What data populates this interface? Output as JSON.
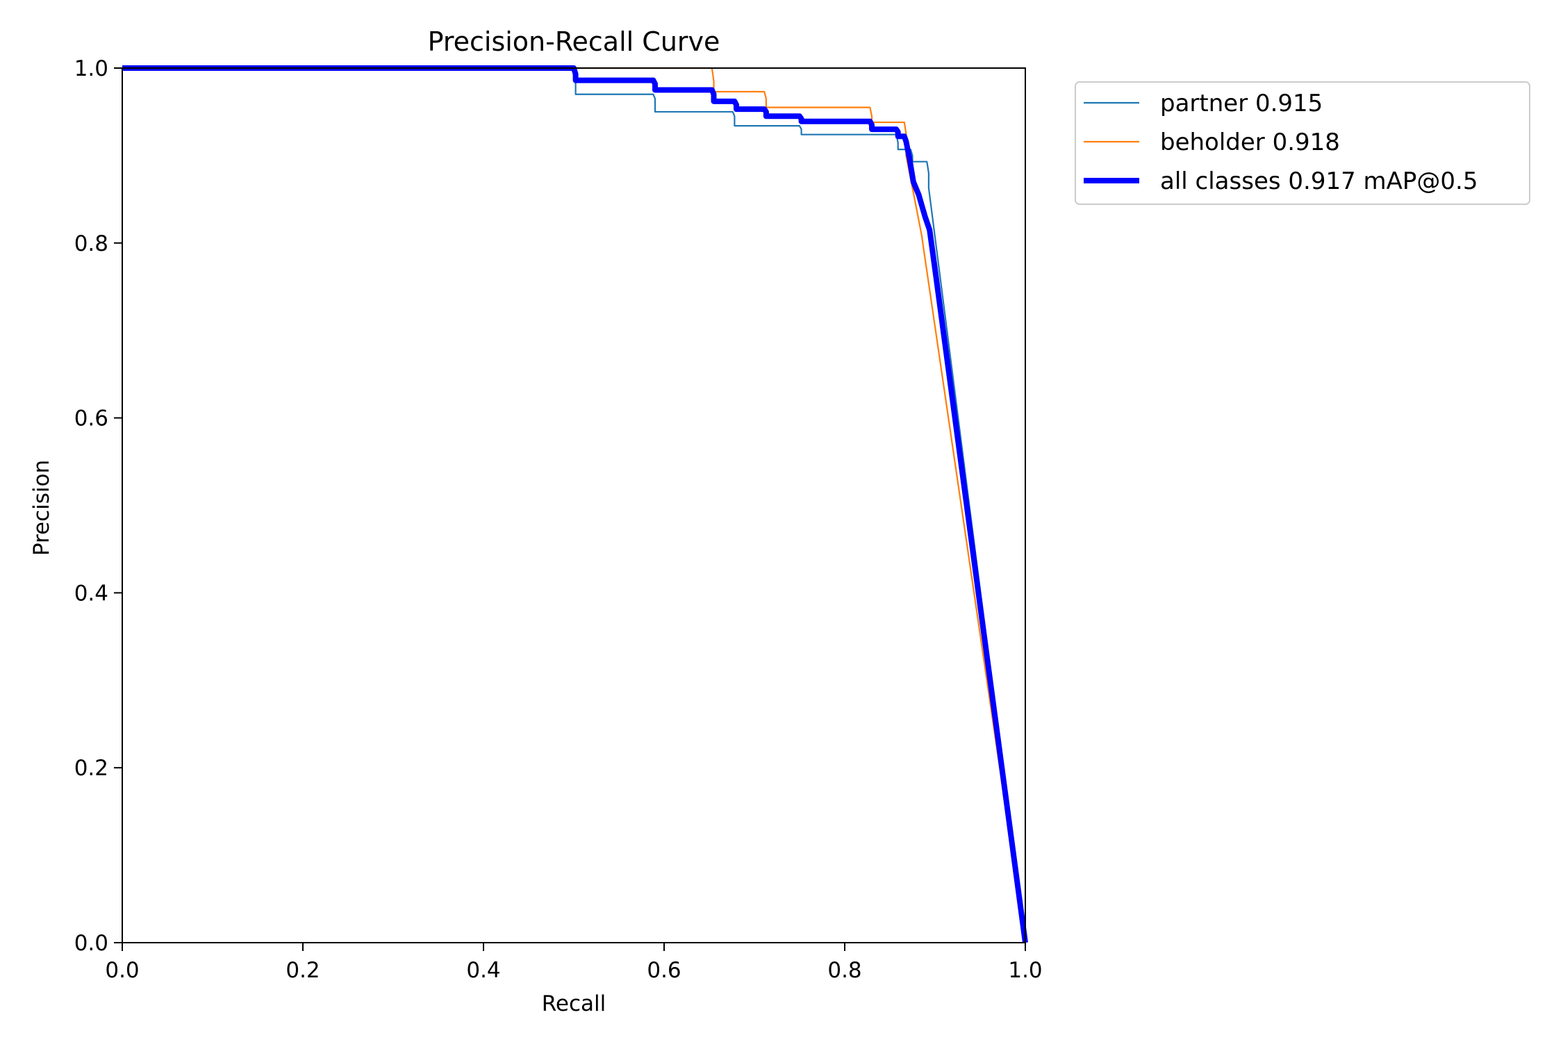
{
  "chart_data": {
    "type": "line",
    "title": "Precision-Recall Curve",
    "xlabel": "Recall",
    "ylabel": "Precision",
    "xlim": [
      0,
      1
    ],
    "ylim": [
      0,
      1
    ],
    "grid": false,
    "legend_placement": "outside-top-right",
    "xticks": [
      "0.0",
      "0.2",
      "0.4",
      "0.6",
      "0.8",
      "1.0"
    ],
    "yticks": [
      "0.0",
      "0.2",
      "0.4",
      "0.6",
      "0.8",
      "1.0"
    ],
    "series": [
      {
        "name": "partner 0.915",
        "color": "#1f77b4",
        "style": "thin",
        "x": [
          0.0,
          0.5,
          0.502,
          0.502,
          0.588,
          0.59,
          0.59,
          0.676,
          0.678,
          0.678,
          0.75,
          0.752,
          0.752,
          0.857,
          0.859,
          0.859,
          0.873,
          0.875,
          0.875,
          0.891,
          0.893,
          0.893,
          1.0
        ],
        "y": [
          1.0,
          1.0,
          0.985,
          0.97,
          0.97,
          0.965,
          0.95,
          0.95,
          0.945,
          0.934,
          0.934,
          0.93,
          0.924,
          0.924,
          0.915,
          0.907,
          0.907,
          0.9,
          0.893,
          0.893,
          0.88,
          0.863,
          0.0
        ]
      },
      {
        "name": "beholder 0.918",
        "color": "#ff7f0e",
        "style": "thin",
        "x": [
          0.0,
          0.653,
          0.655,
          0.655,
          0.711,
          0.713,
          0.713,
          0.828,
          0.83,
          0.83,
          0.866,
          0.868,
          0.868,
          0.885,
          1.0
        ],
        "y": [
          1.0,
          1.0,
          0.985,
          0.973,
          0.973,
          0.965,
          0.955,
          0.955,
          0.945,
          0.938,
          0.938,
          0.925,
          0.9,
          0.81,
          0.0
        ]
      },
      {
        "name": "all classes 0.917 mAP@0.5",
        "color": "#0000ff",
        "style": "thick",
        "x": [
          0.0,
          0.5,
          0.502,
          0.502,
          0.588,
          0.59,
          0.59,
          0.653,
          0.655,
          0.655,
          0.678,
          0.68,
          0.68,
          0.711,
          0.713,
          0.713,
          0.75,
          0.752,
          0.752,
          0.828,
          0.83,
          0.83,
          0.857,
          0.859,
          0.859,
          0.866,
          0.868,
          0.872,
          0.876,
          0.882,
          0.889,
          0.894,
          0.9,
          1.0
        ],
        "y": [
          1.0,
          1.0,
          0.993,
          0.986,
          0.986,
          0.982,
          0.975,
          0.975,
          0.97,
          0.962,
          0.962,
          0.958,
          0.953,
          0.953,
          0.95,
          0.945,
          0.945,
          0.942,
          0.939,
          0.939,
          0.935,
          0.93,
          0.93,
          0.927,
          0.922,
          0.922,
          0.916,
          0.895,
          0.87,
          0.855,
          0.83,
          0.815,
          0.77,
          0.0
        ]
      }
    ]
  }
}
